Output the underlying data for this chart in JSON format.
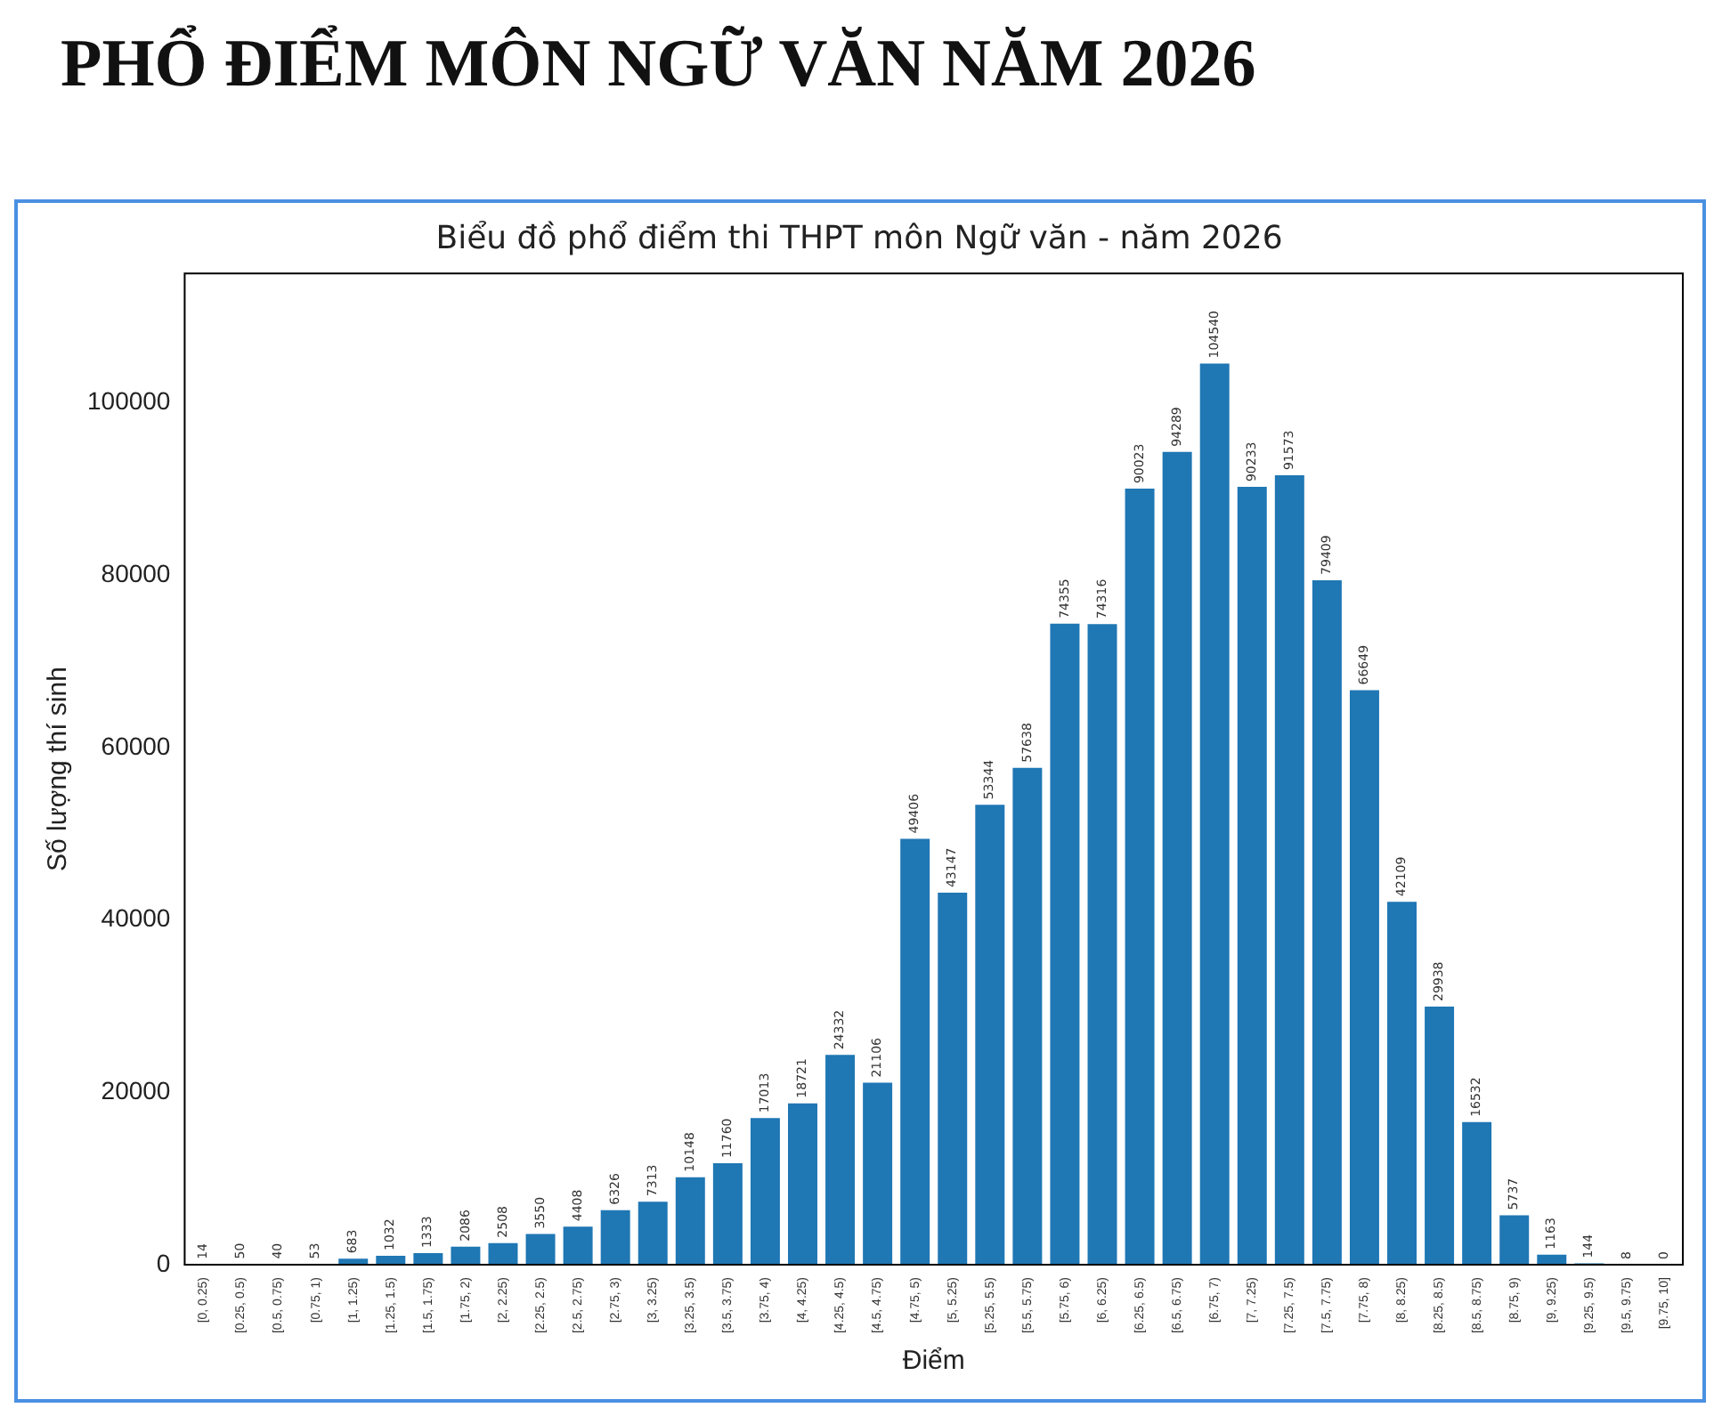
{
  "chart_data": {
    "type": "bar",
    "title": "PHỔ ĐIỂM MÔN NGỮ VĂN NĂM 2026",
    "subtitle": "Biểu đồ phổ điểm thi THPT môn Ngữ văn - năm 2026",
    "xlabel": "Điểm",
    "ylabel": "Số lượng thí sinh",
    "categories": [
      "[0, 0.25)",
      "[0.25, 0.5)",
      "[0.5, 0.75)",
      "[0.75, 1)",
      "[1, 1.25)",
      "[1.25, 1.5)",
      "[1.5, 1.75)",
      "[1.75, 2)",
      "[2, 2.25)",
      "[2.25, 2.5)",
      "[2.5, 2.75)",
      "[2.75, 3)",
      "[3, 3.25)",
      "[3.25, 3.5)",
      "[3.5, 3.75)",
      "[3.75, 4)",
      "[4, 4.25)",
      "[4.25, 4.5)",
      "[4.5, 4.75)",
      "[4.75, 5)",
      "[5, 5.25)",
      "[5.25, 5.5)",
      "[5.5, 5.75)",
      "[5.75, 6)",
      "[6, 6.25)",
      "[6.25, 6.5)",
      "[6.5, 6.75)",
      "[6.75, 7)",
      "[7, 7.25)",
      "[7.25, 7.5)",
      "[7.5, 7.75)",
      "[7.75, 8)",
      "[8, 8.25)",
      "[8.25, 8.5)",
      "[8.5, 8.75)",
      "[8.75, 9)",
      "[9, 9.25)",
      "[9.25, 9.5)",
      "[9.5, 9.75)",
      "[9.75, 10]"
    ],
    "values": [
      14,
      50,
      40,
      53,
      683,
      1032,
      1333,
      2086,
      2508,
      3550,
      4408,
      6326,
      7313,
      10148,
      11760,
      17013,
      18721,
      24332,
      21106,
      49406,
      43147,
      53344,
      57638,
      74355,
      74316,
      90023,
      94289,
      104540,
      90233,
      91573,
      79409,
      66649,
      42109,
      29938,
      16532,
      5737,
      1163,
      144,
      8,
      0
    ],
    "color": "#1f77b4",
    "ylim": [
      0,
      115000
    ],
    "yticks": [
      0,
      20000,
      40000,
      60000,
      80000,
      100000
    ],
    "data_labels": true,
    "grid": false,
    "legend": false
  }
}
